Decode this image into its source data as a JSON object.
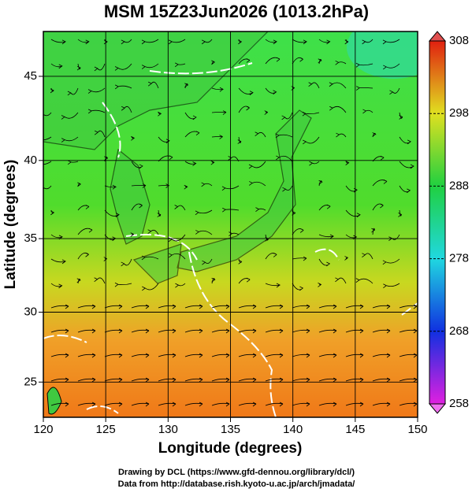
{
  "chart_data": {
    "type": "map",
    "title": "MSM 15Z23Jun2026 (1013.2hPa)",
    "xlabel": "Longitude (degrees)",
    "ylabel": "Latitude  (degrees)",
    "projection": "mercator",
    "xlim": [
      120,
      150
    ],
    "ylim": [
      22.4,
      47.5
    ],
    "xticks": [
      120,
      125,
      130,
      135,
      140,
      145,
      150
    ],
    "yticks": [
      25,
      30,
      35,
      40,
      45
    ],
    "grid": true,
    "colorbar": {
      "lim": [
        258,
        308
      ],
      "ticks": [
        258,
        268,
        278,
        288,
        298,
        308
      ]
    },
    "credits": [
      "Drawing by DCL (https://www.gfd-dennou.org/library/dcl/)",
      "Data from http://database.rish.kyoto-u.ac.jp/arch/jmadata/"
    ]
  }
}
